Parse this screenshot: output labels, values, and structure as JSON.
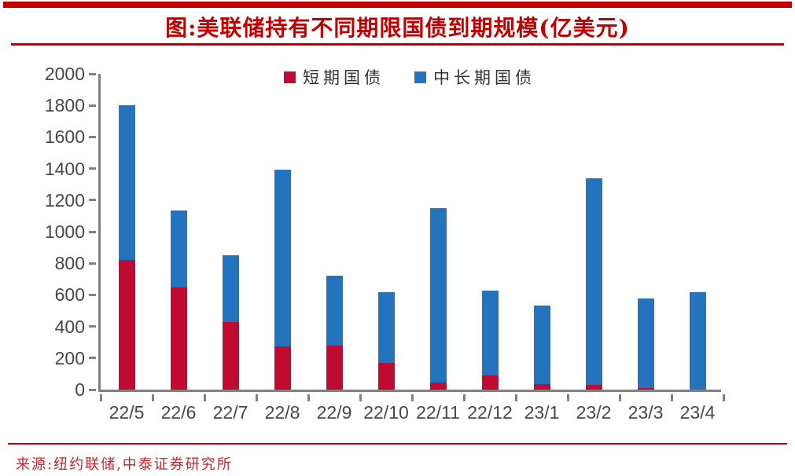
{
  "title": {
    "text": "图:美联储持有不同期限国债到期规模(亿美元)"
  },
  "source": {
    "text": "来源:纽约联储,中泰证券研究所"
  },
  "colors": {
    "accent_red": "#C00000",
    "bar_red": "#C00A32",
    "bar_blue": "#2473BE",
    "axis_gray": "#808080",
    "label_gray": "#474747"
  },
  "chart_data": {
    "type": "bar",
    "stacked": true,
    "title": "图:美联储持有不同期限国债到期规模(亿美元)",
    "categories": [
      "22/5",
      "22/6",
      "22/7",
      "22/8",
      "22/9",
      "22/10",
      "22/11",
      "22/12",
      "23/1",
      "23/2",
      "23/3",
      "23/4"
    ],
    "series": [
      {
        "name": "短期国债",
        "color": "#C00A32",
        "values": [
          820,
          645,
          430,
          275,
          280,
          170,
          45,
          90,
          35,
          30,
          10,
          0
        ]
      },
      {
        "name": "中长期国债",
        "color": "#2473BE",
        "values": [
          980,
          490,
          420,
          1120,
          440,
          445,
          1105,
          535,
          495,
          1310,
          565,
          615
        ]
      }
    ],
    "totals": [
      1800,
      1135,
      850,
      1395,
      720,
      615,
      1150,
      625,
      530,
      1340,
      575,
      615
    ],
    "xlabel": "",
    "ylabel": "",
    "ylim": [
      0,
      2000
    ],
    "ytick_step": 200,
    "grid": false,
    "legend_position": "top-center"
  }
}
